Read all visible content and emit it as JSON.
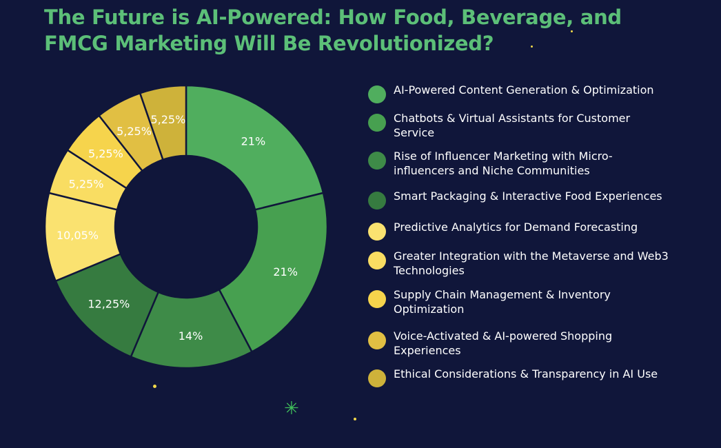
{
  "title": "The Future is AI-Powered: How Food, Beverage, and FMCG Marketing Will Be Revolutionized?",
  "background": "#10163a",
  "title_color": "#5cbf78",
  "chart_data": {
    "type": "donut",
    "title": "The Future is AI-Powered: How Food, Beverage, and FMCG Marketing Will Be Revolutionized?",
    "legend_position": "right",
    "start": "top",
    "direction": "clockwise",
    "slices": [
      {
        "label": " AI-Powered Content Generation & Optimization",
        "value": 21,
        "display": "21%",
        "color": "#50ae5e"
      },
      {
        "label": "Chatbots & Virtual Assistants for Customer Service",
        "value": 21,
        "display": "21%",
        "color": "#47a050"
      },
      {
        "label": "Rise of Influencer Marketing with Micro-influencers and Niche Communities",
        "value": 14,
        "display": "14%",
        "color": "#3e8b48"
      },
      {
        "label": "Smart Packaging & Interactive Food Experiences",
        "value": 12.25,
        "display": "12,25%",
        "color": "#367b40"
      },
      {
        "label": "Predictive Analytics for Demand Forecasting",
        "value": 10.05,
        "display": "10,05%",
        "color": "#fae270"
      },
      {
        "label": "Greater Integration with the Metaverse and Web3 Technologies",
        "value": 5.25,
        "display": "5,25%",
        "color": "#f9dd62"
      },
      {
        "label": "Supply Chain Management & Inventory Optimization",
        "value": 5.25,
        "display": "5,25%",
        "color": "#f6d44c"
      },
      {
        "label": "Voice-Activated & AI-powered Shopping Experiences",
        "value": 5.25,
        "display": "5,25%",
        "color": "#e1bf43"
      },
      {
        "label": "Ethical Considerations & Transparency in AI Use",
        "value": 5.25,
        "display": "5,25%",
        "color": "#ceb23a"
      }
    ]
  }
}
